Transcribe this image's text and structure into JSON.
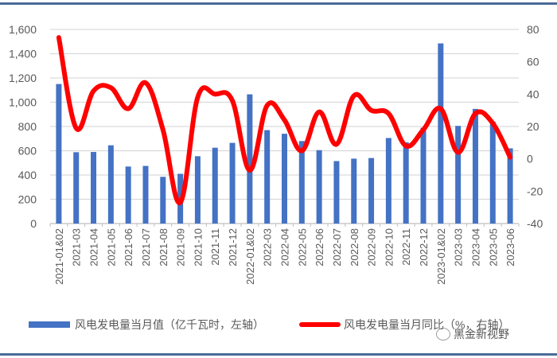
{
  "chart_data": {
    "type": "bar+line",
    "title": "",
    "categories": [
      "2021-01&02",
      "2021-03",
      "2021-04",
      "2021-05",
      "2021-06",
      "2021-07",
      "2021-08",
      "2021-09",
      "2021-10",
      "2021-11",
      "2021-12",
      "2022-01&02",
      "2022-03",
      "2022-04",
      "2022-05",
      "2022-06",
      "2022-07",
      "2022-08",
      "2022-09",
      "2022-10",
      "2022-11",
      "2022-12",
      "2023-01&02",
      "2023-03",
      "2023-04",
      "2023-05",
      "2023-06"
    ],
    "series": [
      {
        "name": "风电发电量当月值（亿千瓦时，左轴）",
        "type": "bar",
        "axis": "left",
        "color": "#4472c4",
        "values": [
          1150,
          588,
          590,
          645,
          470,
          475,
          385,
          410,
          555,
          625,
          665,
          1065,
          770,
          740,
          680,
          605,
          515,
          535,
          540,
          705,
          670,
          790,
          1485,
          805,
          945,
          840,
          620
        ]
      },
      {
        "name": "风电发电量当月同比（%，右轴）",
        "type": "line",
        "axis": "right",
        "color": "#ff0000",
        "values": [
          75,
          19,
          42,
          44,
          31,
          47,
          18,
          -27,
          38,
          40,
          36,
          -7,
          33,
          24,
          5,
          29,
          9,
          39,
          30,
          28,
          8,
          18,
          31,
          4,
          28,
          22,
          1
        ]
      }
    ],
    "left_axis": {
      "ylim": [
        0,
        1600
      ],
      "ticks": [
        "0",
        "200",
        "400",
        "600",
        "800",
        "1,000",
        "1,200",
        "1,400",
        "1,600"
      ]
    },
    "right_axis": {
      "ylim": [
        -40,
        80
      ],
      "ticks": [
        "-40",
        "-20",
        "0",
        "20",
        "40",
        "60",
        "80"
      ]
    },
    "grid": true,
    "legend_position": "bottom"
  },
  "legend": {
    "bar_label": "风电发电量当月值（亿千瓦时，左轴）",
    "line_label": "风电发电量当月同比（%，右轴）"
  },
  "watermark": {
    "text": "黑金新视野"
  }
}
